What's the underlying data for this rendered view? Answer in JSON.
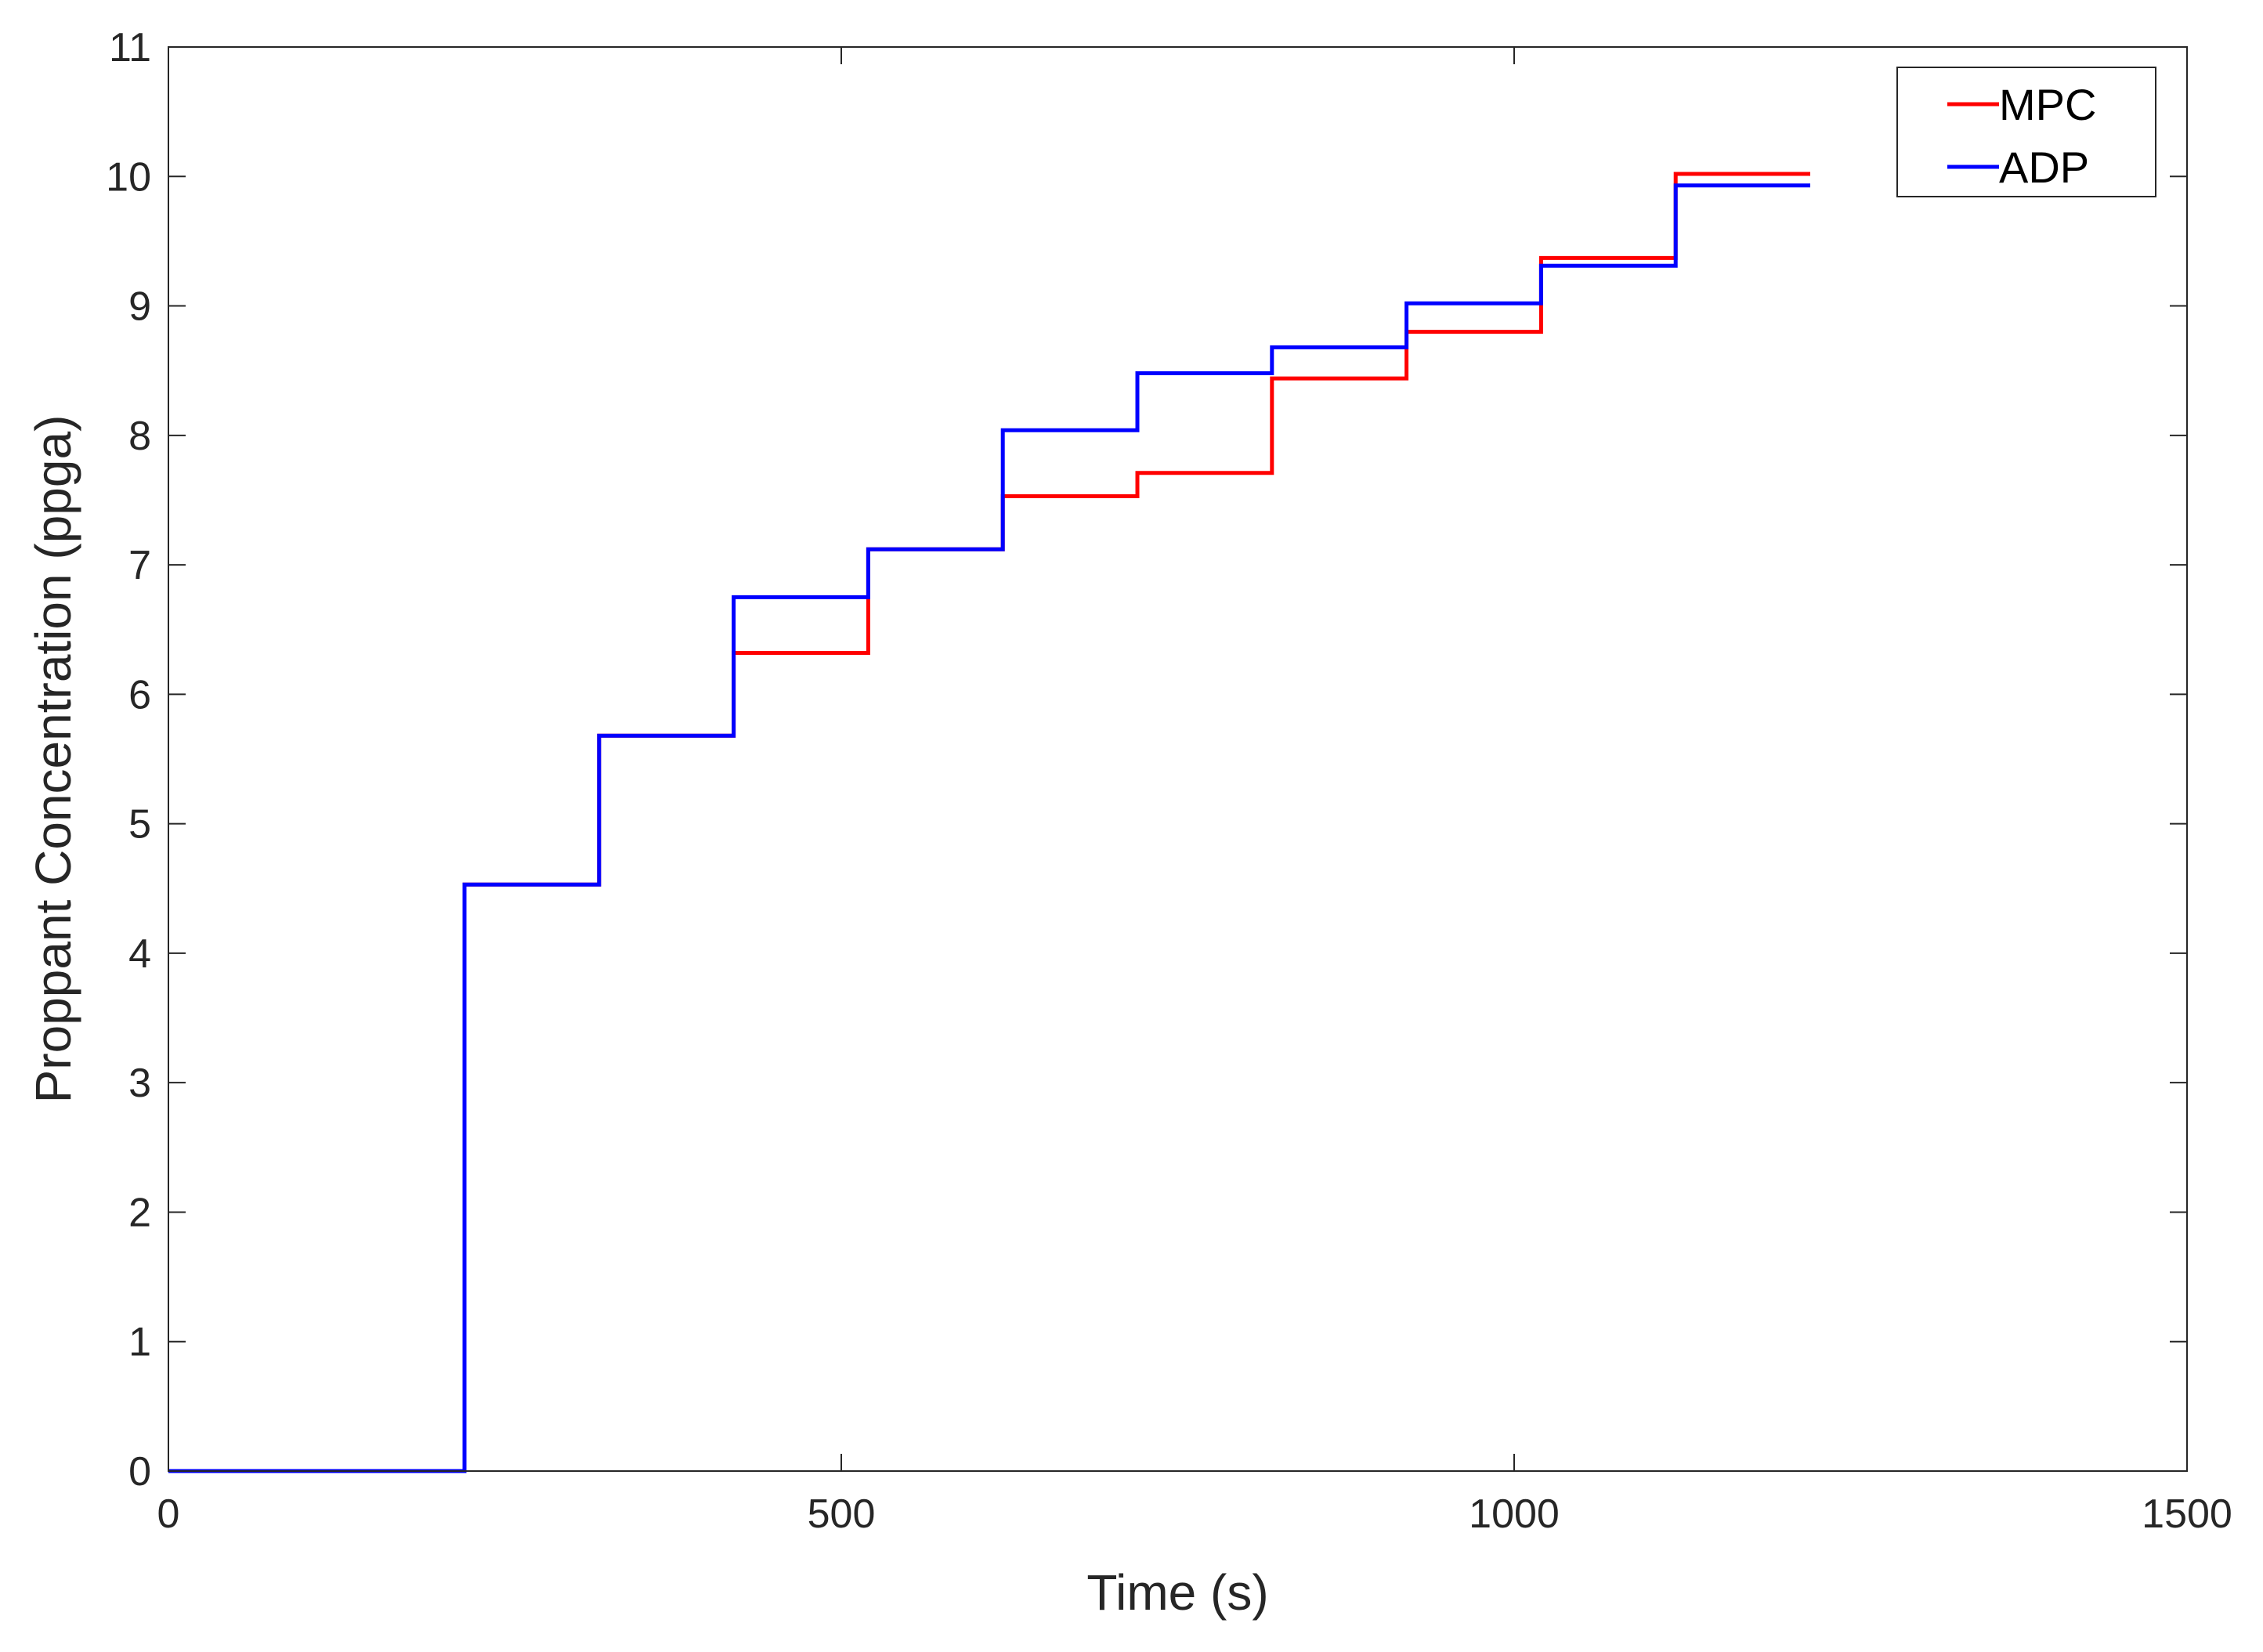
{
  "chart_data": {
    "type": "line",
    "step": true,
    "xlabel": "Time (s)",
    "ylabel": "Proppant Concentration (ppga)",
    "xlim": [
      0,
      1500
    ],
    "ylim": [
      0,
      11
    ],
    "xticks": [
      "0",
      "500",
      "1000",
      "1500"
    ],
    "yticks": [
      "0",
      "1",
      "2",
      "3",
      "4",
      "5",
      "6",
      "7",
      "8",
      "9",
      "10",
      "11"
    ],
    "grid": false,
    "legend_position": "top-right",
    "series": [
      {
        "name": "MPC",
        "color": "#ff0000",
        "x": [
          0,
          220,
          220,
          320,
          320,
          420,
          420,
          520,
          520,
          620,
          620,
          720,
          720,
          820,
          820,
          920,
          920,
          1020,
          1020,
          1120,
          1120,
          1220
        ],
        "y": [
          0,
          0,
          4.53,
          4.53,
          5.68,
          5.68,
          6.32,
          6.32,
          7.12,
          7.12,
          7.53,
          7.53,
          7.71,
          7.71,
          8.44,
          8.44,
          8.8,
          8.8,
          9.37,
          9.37,
          10.02,
          10.02
        ]
      },
      {
        "name": "ADP",
        "color": "#0000ff",
        "x": [
          0,
          220,
          220,
          320,
          320,
          420,
          420,
          520,
          520,
          620,
          620,
          720,
          720,
          820,
          820,
          920,
          920,
          1020,
          1020,
          1120,
          1120,
          1220
        ],
        "y": [
          0,
          0,
          4.53,
          4.53,
          5.68,
          5.68,
          6.75,
          6.75,
          7.12,
          7.12,
          8.04,
          8.04,
          8.48,
          8.48,
          8.68,
          8.68,
          9.02,
          9.02,
          9.31,
          9.31,
          9.93,
          9.93
        ]
      }
    ]
  }
}
